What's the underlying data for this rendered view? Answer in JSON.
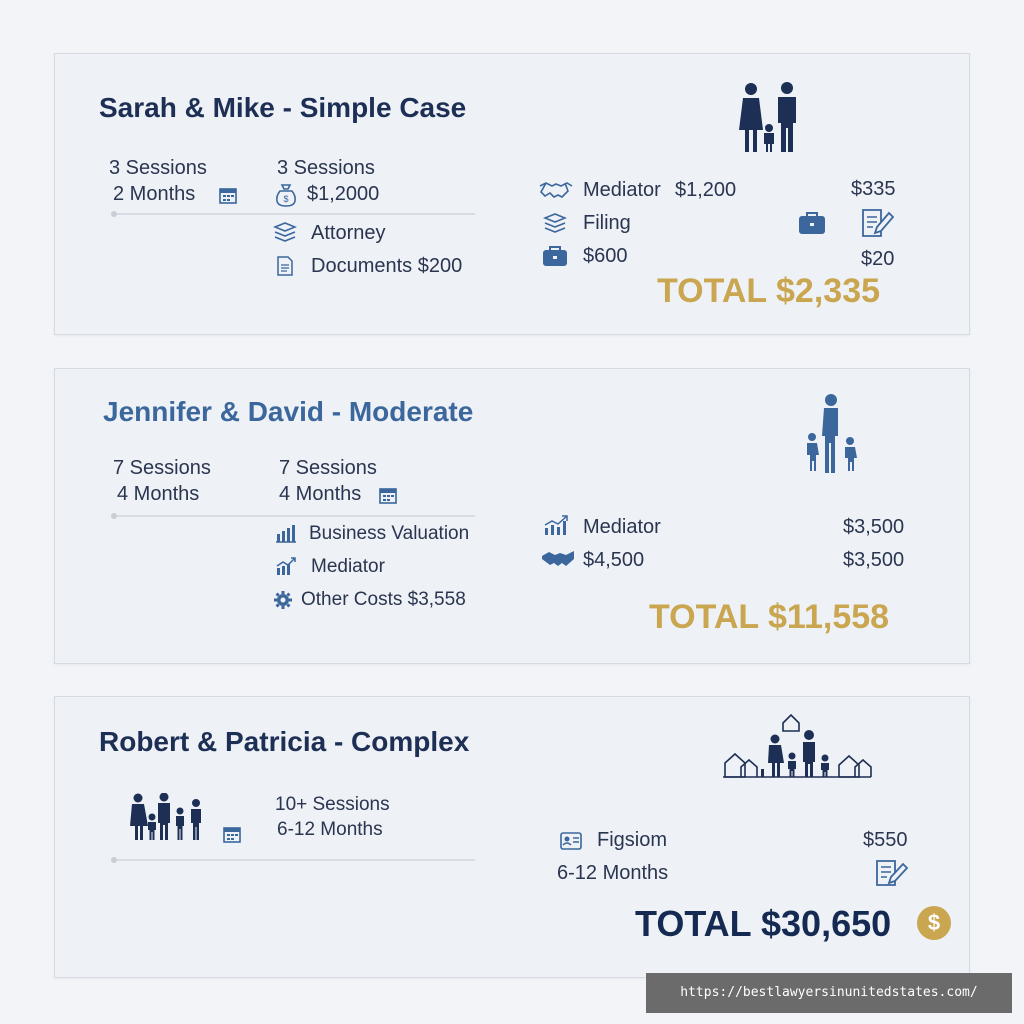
{
  "cases": [
    {
      "title": "Sarah & Mike - Simple Case",
      "left": {
        "sessions": "3 Sessions",
        "duration": "2 Months"
      },
      "mid": {
        "sessions": "3 Sessions",
        "amount": "$1,2000",
        "item1": "Attorney",
        "item2": "Documents $200"
      },
      "right": {
        "mediator": "Mediator",
        "mediator_amount": "$1,200",
        "amount_a": "$335",
        "filing": "Filing",
        "amount_b": "$600",
        "amount_c": "$20"
      },
      "total_label": "TOTAL",
      "total_value": "$2,335"
    },
    {
      "title": "Jennifer & David - Moderate",
      "left": {
        "sessions": "7 Sessions",
        "duration": "4 Months"
      },
      "mid": {
        "sessions": "7 Sessions",
        "duration": "4 Months",
        "item1": "Business Valuation",
        "item2": "Mediator",
        "item3": "Other Costs $3,558"
      },
      "right": {
        "mediator": "Mediator",
        "amount_a": "$3,500",
        "amount_b": "$4,500",
        "amount_c": "$3,500"
      },
      "total_label": "TOTAL",
      "total_value": "$11,558"
    },
    {
      "title": "Robert & Patricia - Complex",
      "mid": {
        "sessions": "10+ Sessions",
        "duration": "6-12 Months"
      },
      "right": {
        "item1": "Figsiom",
        "amount_a": "$550",
        "duration": "6-12 Months"
      },
      "total_label": "TOTAL",
      "total_value": "$30,650",
      "coin_symbol": "$"
    }
  ],
  "footer_url": "https://bestlawyersinunitedstates.com/",
  "colors": {
    "navy": "#1d2f55",
    "steel_blue": "#3b679c",
    "gold": "#c9a64f",
    "card_bg": "#eef1f6"
  },
  "icons": [
    "family-icon",
    "calendar-icon",
    "money-bag-icon",
    "stack-icon",
    "document-icon",
    "handshake-icon",
    "briefcase-icon",
    "edit-document-icon",
    "chart-icon",
    "gear-icon",
    "houses-family-icon",
    "id-card-icon",
    "coin-icon"
  ]
}
